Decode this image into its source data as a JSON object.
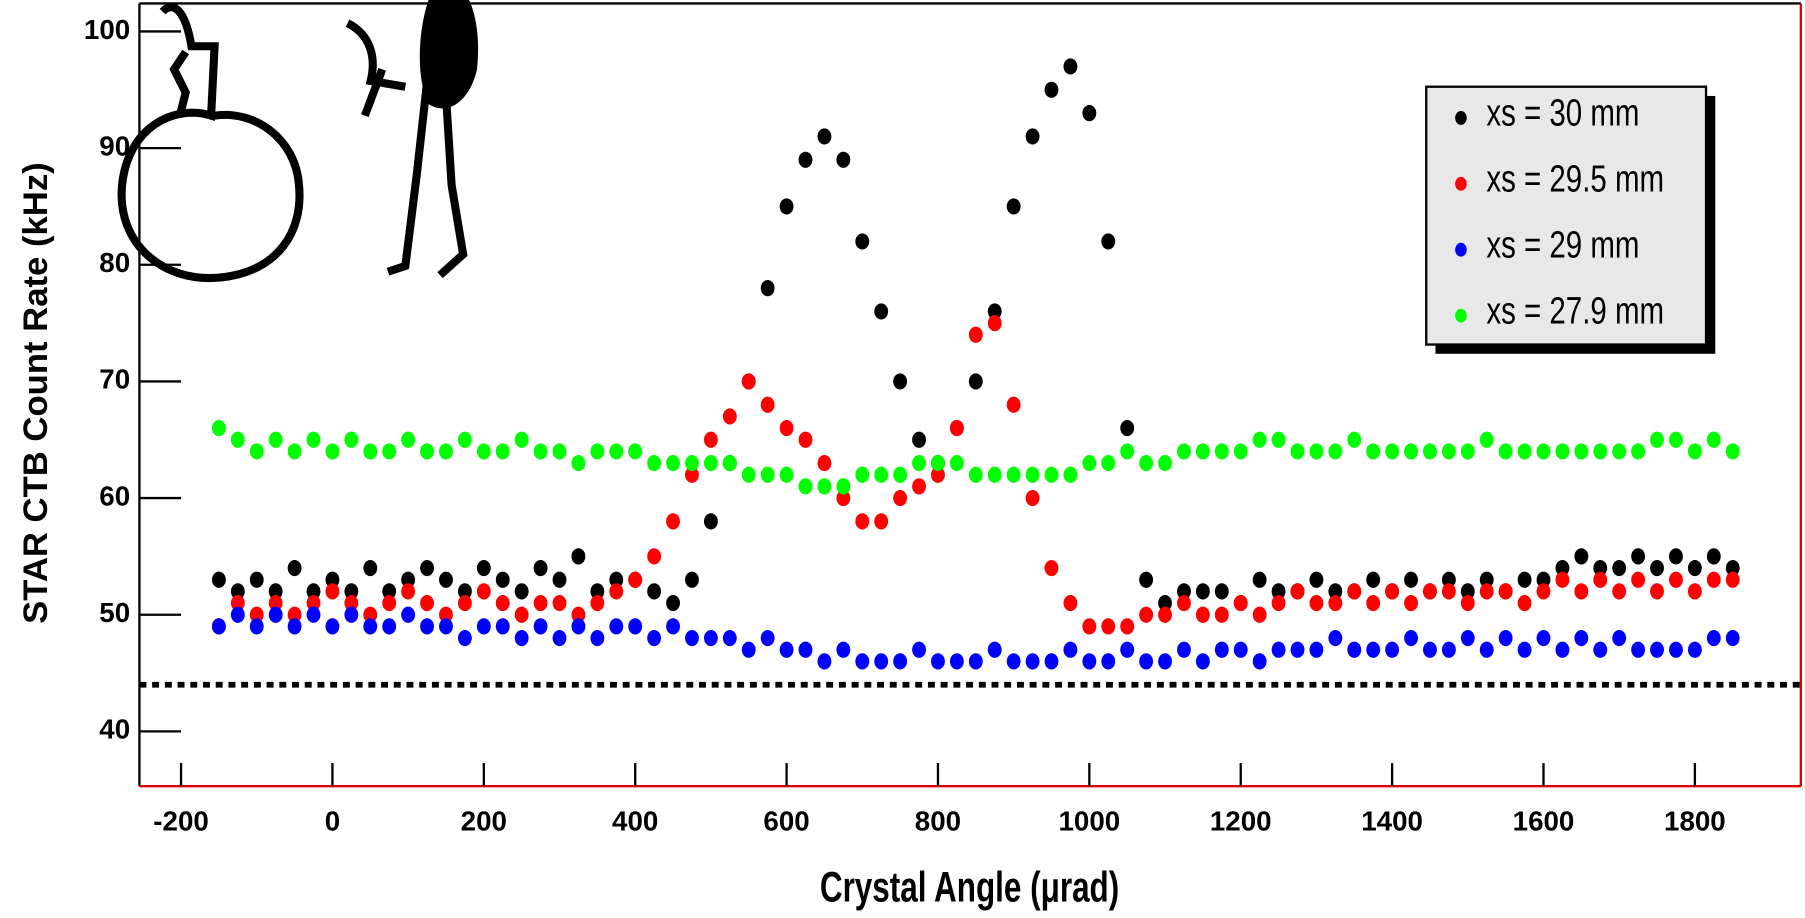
{
  "chart_data": {
    "type": "scatter",
    "xlabel": "Crystal Angle (μrad)",
    "ylabel": "STAR CTB Count Rate (kHz)",
    "xlim": [
      -255,
      1940
    ],
    "ylim": [
      35.3,
      102.4
    ],
    "xticks": [
      -200,
      0,
      200,
      400,
      600,
      800,
      1000,
      1200,
      1400,
      1600,
      1800
    ],
    "yticks": [
      40,
      50,
      60,
      70,
      80,
      90,
      100
    ],
    "hline": 44,
    "legend": "upper right",
    "x": [
      -150,
      -125,
      -100,
      -75,
      -50,
      -25,
      0,
      25,
      50,
      75,
      100,
      125,
      150,
      175,
      200,
      225,
      250,
      275,
      300,
      325,
      350,
      375,
      400,
      425,
      450,
      475,
      500,
      525,
      550,
      575,
      600,
      625,
      650,
      675,
      700,
      725,
      750,
      775,
      800,
      825,
      850,
      875,
      900,
      925,
      950,
      975,
      1000,
      1025,
      1050,
      1075,
      1100,
      1125,
      1150,
      1175,
      1200,
      1225,
      1250,
      1275,
      1300,
      1325,
      1350,
      1375,
      1400,
      1425,
      1450,
      1475,
      1500,
      1525,
      1550,
      1575,
      1600,
      1625,
      1650,
      1675,
      1700,
      1725,
      1750,
      1775,
      1800,
      1825,
      1850
    ],
    "series": [
      {
        "name": "xs = 30 mm",
        "color": "#000000",
        "values": [
          53,
          52,
          53,
          52,
          54,
          52,
          53,
          52,
          54,
          52,
          53,
          54,
          53,
          52,
          54,
          53,
          52,
          54,
          53,
          55,
          52,
          53,
          53,
          52,
          51,
          53,
          58,
          63,
          70,
          78,
          85,
          89,
          91,
          89,
          82,
          76,
          70,
          65,
          63,
          66,
          70,
          76,
          85,
          91,
          95,
          97,
          93,
          82,
          66,
          53,
          51,
          52,
          52,
          52,
          51,
          53,
          52,
          52,
          53,
          52,
          52,
          53,
          52,
          53,
          52,
          53,
          52,
          53,
          52,
          53,
          53,
          54,
          55,
          54,
          54,
          55,
          54,
          55,
          54,
          55,
          54
        ]
      },
      {
        "name": "xs = 29.5 mm",
        "color": "#ff0000",
        "values": [
          49,
          51,
          50,
          51,
          50,
          51,
          52,
          51,
          50,
          51,
          52,
          51,
          50,
          51,
          52,
          51,
          50,
          51,
          51,
          50,
          51,
          52,
          53,
          55,
          58,
          62,
          65,
          67,
          70,
          68,
          66,
          65,
          63,
          60,
          58,
          58,
          60,
          61,
          62,
          66,
          74,
          75,
          68,
          60,
          54,
          51,
          49,
          49,
          49,
          50,
          50,
          51,
          50,
          50,
          51,
          50,
          51,
          52,
          51,
          51,
          52,
          51,
          52,
          51,
          52,
          52,
          51,
          52,
          52,
          51,
          52,
          53,
          52,
          53,
          52,
          53,
          52,
          53,
          52,
          53,
          53
        ]
      },
      {
        "name": "xs = 29 mm",
        "color": "#0000ff",
        "values": [
          49,
          50,
          49,
          50,
          49,
          50,
          49,
          50,
          49,
          49,
          50,
          49,
          49,
          48,
          49,
          49,
          48,
          49,
          48,
          49,
          48,
          49,
          49,
          48,
          49,
          48,
          48,
          48,
          47,
          48,
          47,
          47,
          46,
          47,
          46,
          46,
          46,
          47,
          46,
          46,
          46,
          47,
          46,
          46,
          46,
          47,
          46,
          46,
          47,
          46,
          46,
          47,
          46,
          47,
          47,
          46,
          47,
          47,
          47,
          48,
          47,
          47,
          47,
          48,
          47,
          47,
          48,
          47,
          48,
          47,
          48,
          47,
          48,
          47,
          48,
          47,
          47,
          47,
          47,
          48,
          48
        ]
      },
      {
        "name": "xs = 27.9 mm",
        "color": "#00ff00",
        "values": [
          66,
          65,
          64,
          65,
          64,
          65,
          64,
          65,
          64,
          64,
          65,
          64,
          64,
          65,
          64,
          64,
          65,
          64,
          64,
          63,
          64,
          64,
          64,
          63,
          63,
          63,
          63,
          63,
          62,
          62,
          62,
          61,
          61,
          61,
          62,
          62,
          62,
          63,
          63,
          63,
          62,
          62,
          62,
          62,
          62,
          62,
          63,
          63,
          64,
          63,
          63,
          64,
          64,
          64,
          64,
          65,
          65,
          64,
          64,
          64,
          65,
          64,
          64,
          64,
          64,
          64,
          64,
          65,
          64,
          64,
          64,
          64,
          64,
          64,
          64,
          64,
          65,
          65,
          64,
          65,
          64
        ]
      }
    ]
  }
}
